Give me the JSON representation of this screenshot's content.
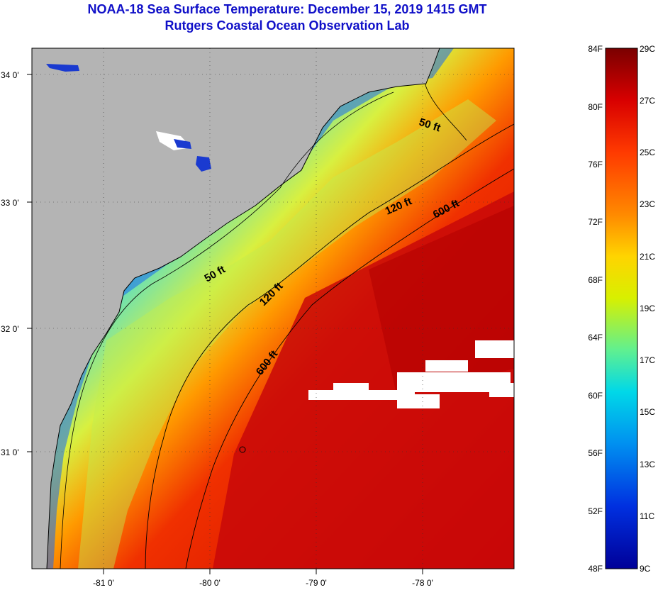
{
  "header": {
    "title": "NOAA-18 Sea Surface Temperature:  December 15, 2019 1415 GMT",
    "subtitle": "Rutgers Coastal Ocean Observation Lab"
  },
  "map": {
    "lat_labels": [
      "34 0'",
      "33 0'",
      "32 0'",
      "31 0'"
    ],
    "lon_labels": [
      "-81 0'",
      "-80 0'",
      "-79 0'",
      "-78 0'"
    ],
    "depth_contours": {
      "fifty_north": "50 ft",
      "fifty_south": "50 ft",
      "one_twenty_north": "120 ft",
      "one_twenty_south": "120 ft",
      "six_hundred_north": "600 ft",
      "six_hundred_south": "600 ft"
    },
    "colors": {
      "land": "#b4b4b4",
      "cloud": "#ffffff",
      "contour": "#000000"
    }
  },
  "colorbar": {
    "fahrenheit": [
      "84F",
      "80F",
      "76F",
      "72F",
      "68F",
      "64F",
      "60F",
      "56F",
      "52F",
      "48F"
    ],
    "celsius": [
      "29C",
      "27C",
      "25C",
      "23C",
      "21C",
      "19C",
      "17C",
      "15C",
      "13C",
      "11C",
      "9C"
    ],
    "gradient_colors": [
      "#7a0000",
      "#d80000",
      "#ff3a00",
      "#ff8a00",
      "#ffd400",
      "#d8f000",
      "#60f090",
      "#00d8e8",
      "#0090f0",
      "#0030e0",
      "#000098"
    ]
  }
}
